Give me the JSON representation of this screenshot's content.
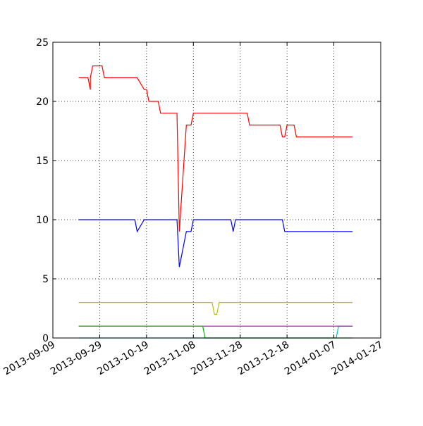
{
  "chart_data": {
    "type": "line",
    "title": "",
    "xlabel": "",
    "ylabel": "",
    "x_is_date": true,
    "xlim": [
      "2013-09-09",
      "2014-01-27"
    ],
    "ylim": [
      0,
      25
    ],
    "grid": true,
    "legend": "none",
    "x_tick_labels": [
      "2013-09-09",
      "2013-09-29",
      "2013-10-19",
      "2013-11-08",
      "2013-11-28",
      "2013-12-18",
      "2014-01-07",
      "2014-01-27"
    ],
    "y_tick_labels": [
      "0",
      "5",
      "10",
      "15",
      "20",
      "25"
    ],
    "series": [
      {
        "color": "#ff0000",
        "points": [
          [
            "2013-09-20",
            22
          ],
          [
            "2013-09-24",
            22
          ],
          [
            "2013-09-25",
            21
          ],
          [
            "2013-09-25",
            22
          ],
          [
            "2013-09-26",
            23
          ],
          [
            "2013-09-30",
            23
          ],
          [
            "2013-10-01",
            22
          ],
          [
            "2013-10-15",
            22
          ],
          [
            "2013-10-18",
            21
          ],
          [
            "2013-10-19",
            21
          ],
          [
            "2013-10-20",
            20
          ],
          [
            "2013-10-24",
            20
          ],
          [
            "2013-10-25",
            19
          ],
          [
            "2013-11-01",
            19
          ],
          [
            "2013-11-02",
            9
          ],
          [
            "2013-11-05",
            18
          ],
          [
            "2013-11-07",
            18
          ],
          [
            "2013-11-08",
            19
          ],
          [
            "2013-12-01",
            19
          ],
          [
            "2013-12-02",
            18
          ],
          [
            "2013-12-15",
            18
          ],
          [
            "2013-12-16",
            17
          ],
          [
            "2013-12-17",
            17
          ],
          [
            "2013-12-18",
            18
          ],
          [
            "2013-12-21",
            18
          ],
          [
            "2013-12-22",
            17
          ],
          [
            "2014-01-15",
            17
          ]
        ]
      },
      {
        "color": "#0000ff",
        "points": [
          [
            "2013-09-20",
            10
          ],
          [
            "2013-10-14",
            10
          ],
          [
            "2013-10-15",
            9
          ],
          [
            "2013-10-18",
            10
          ],
          [
            "2013-11-01",
            10
          ],
          [
            "2013-11-02",
            6
          ],
          [
            "2013-11-05",
            9
          ],
          [
            "2013-11-07",
            9
          ],
          [
            "2013-11-08",
            10
          ],
          [
            "2013-11-24",
            10
          ],
          [
            "2013-11-25",
            9
          ],
          [
            "2013-11-26",
            10
          ],
          [
            "2013-12-16",
            10
          ],
          [
            "2013-12-17",
            9
          ],
          [
            "2014-01-15",
            9
          ]
        ]
      },
      {
        "color": "#bfbf00",
        "points": [
          [
            "2013-09-20",
            3
          ],
          [
            "2013-11-16",
            3
          ],
          [
            "2013-11-17",
            2
          ],
          [
            "2013-11-18",
            2
          ],
          [
            "2013-11-19",
            3
          ],
          [
            "2014-01-15",
            3
          ]
        ]
      },
      {
        "color": "#00bfbf",
        "points": [
          [
            "2013-09-20",
            0
          ],
          [
            "2014-01-08",
            0
          ],
          [
            "2014-01-09",
            1
          ],
          [
            "2014-01-15",
            1
          ]
        ]
      },
      {
        "color": "#bf00bf",
        "points": [
          [
            "2013-09-20",
            1
          ],
          [
            "2014-01-15",
            1
          ]
        ]
      },
      {
        "color": "#00bf00",
        "points": [
          [
            "2013-09-20",
            1
          ],
          [
            "2013-11-12",
            1
          ],
          [
            "2013-11-13",
            0
          ],
          [
            "2014-01-15",
            0
          ]
        ]
      }
    ]
  }
}
